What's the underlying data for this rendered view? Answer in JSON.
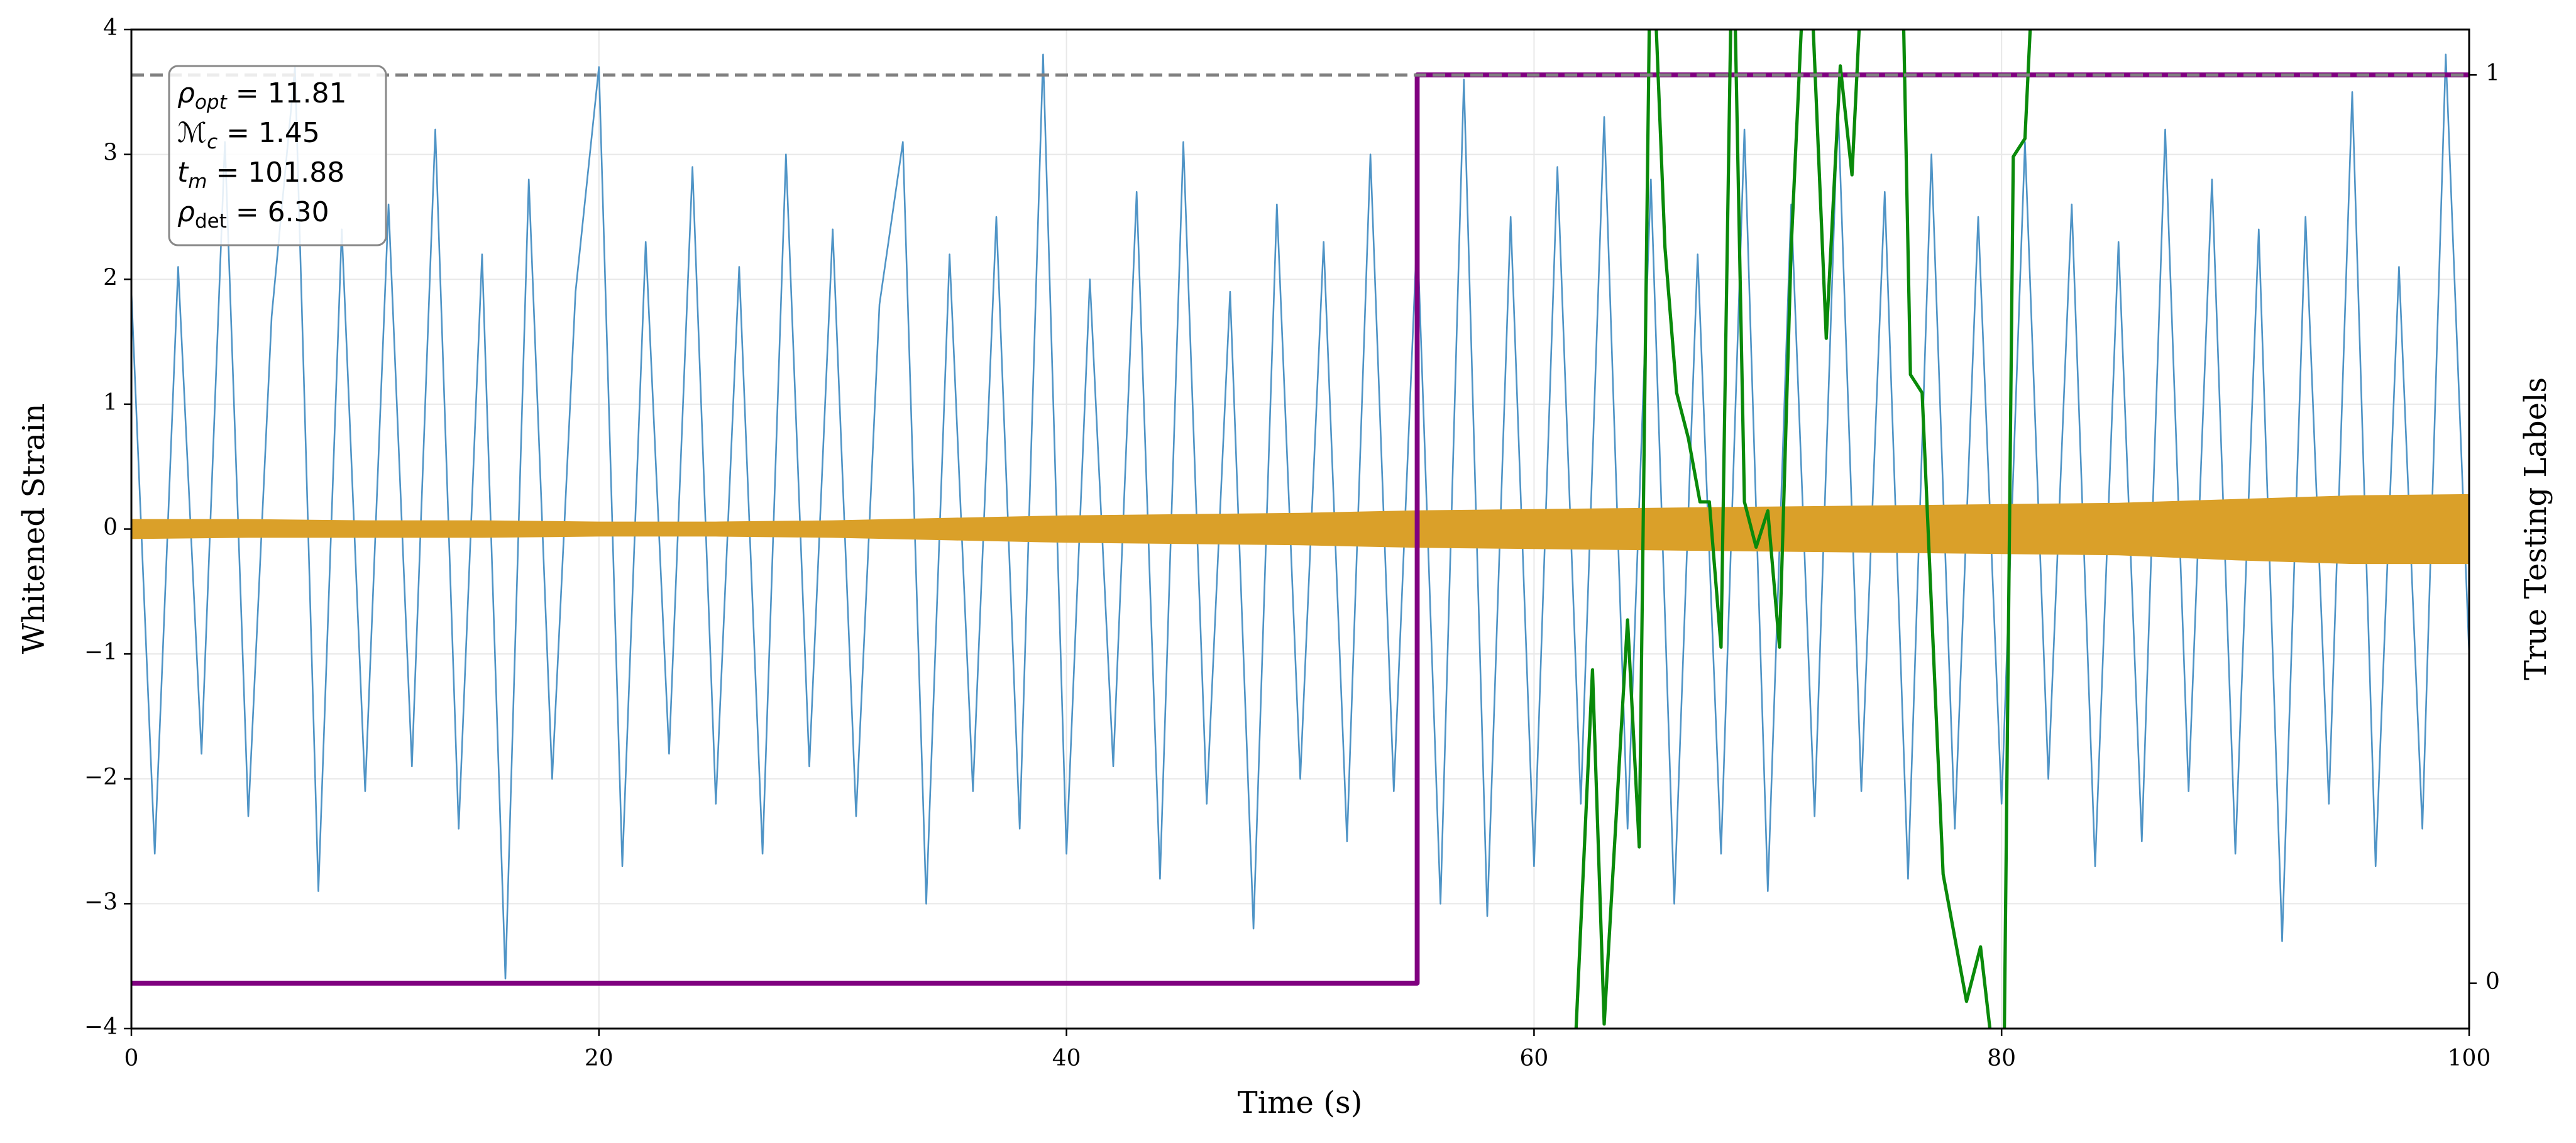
{
  "chart_data": {
    "type": "line",
    "xlabel": "Time (s)",
    "ylabel": "Whitened Strain",
    "y2label": "True Testing Labels",
    "xlim": [
      0,
      100
    ],
    "ylim": [
      -4,
      4
    ],
    "y2lim": [
      -0.05,
      1.05
    ],
    "xticks": [
      0,
      20,
      40,
      60,
      80,
      100
    ],
    "yticks": [
      {
        "value": -4,
        "label": "−4"
      },
      {
        "value": -3,
        "label": "−3"
      },
      {
        "value": -2,
        "label": "−2"
      },
      {
        "value": -1,
        "label": "−1"
      },
      0,
      1,
      2,
      3,
      4
    ],
    "y2ticks": [
      0,
      1
    ],
    "grid": true,
    "series": [
      {
        "type": "line",
        "color": "#4f94c6",
        "x": [
          0,
          1,
          2,
          3,
          4,
          5,
          6,
          7,
          8,
          9,
          10,
          11,
          12,
          13,
          14,
          15,
          16,
          17,
          18,
          19,
          20,
          21,
          22,
          23,
          24,
          25,
          26,
          27,
          28,
          29,
          30,
          31,
          32,
          33,
          34,
          35,
          36,
          37,
          38,
          39,
          40,
          41,
          42,
          43,
          44,
          45,
          46,
          47,
          48,
          49,
          50,
          51,
          52,
          53,
          54,
          55,
          56,
          57,
          58,
          59,
          60,
          61,
          62,
          63,
          64,
          65,
          66,
          67,
          68,
          69,
          70,
          71,
          72,
          73,
          74,
          75,
          76,
          77,
          78,
          79,
          80,
          81,
          82,
          83,
          84,
          85,
          86,
          87,
          88,
          89,
          90,
          91,
          92,
          93,
          94,
          95,
          96,
          97,
          98,
          99,
          100
        ],
        "values": [
          1.9,
          -2.6,
          2.1,
          -1.8,
          3.1,
          -2.3,
          1.7,
          3.7,
          -2.9,
          2.4,
          -2.1,
          2.6,
          -1.9,
          3.2,
          -2.4,
          2.2,
          -3.6,
          2.8,
          -2.0,
          1.9,
          3.7,
          -2.7,
          2.3,
          -1.8,
          2.9,
          -2.2,
          2.1,
          -2.6,
          3.0,
          -1.9,
          2.4,
          -2.3,
          1.8,
          3.1,
          -3.0,
          2.2,
          -2.1,
          2.5,
          -2.4,
          3.8,
          -2.6,
          2.0,
          -1.9,
          2.7,
          -2.8,
          3.1,
          -2.2,
          1.9,
          -3.2,
          2.6,
          -2.0,
          2.3,
          -2.5,
          3.0,
          -2.1,
          2.4,
          -3.0,
          3.6,
          -3.1,
          2.5,
          -2.7,
          2.9,
          -2.2,
          3.3,
          -2.4,
          2.8,
          -3.0,
          2.2,
          -2.6,
          3.2,
          -2.9,
          2.6,
          -2.3,
          3.4,
          -2.1,
          2.7,
          -2.8,
          3.0,
          -2.4,
          2.5,
          -2.2,
          3.1,
          -2.0,
          2.6,
          -2.7,
          2.3,
          -2.5,
          3.2,
          -2.1,
          2.8,
          -2.6,
          2.4,
          -3.3,
          2.5,
          -2.2,
          3.5,
          -2.7,
          2.1,
          -2.4,
          3.8,
          -1.0
        ]
      },
      {
        "type": "band",
        "color": "#daa029",
        "x": [
          0,
          5,
          10,
          15,
          20,
          25,
          30,
          35,
          40,
          45,
          50,
          55,
          60,
          65,
          70,
          75,
          80,
          85,
          90,
          95,
          100
        ],
        "upper": [
          0.08,
          0.08,
          0.07,
          0.07,
          0.06,
          0.06,
          0.07,
          0.09,
          0.11,
          0.12,
          0.13,
          0.15,
          0.16,
          0.17,
          0.18,
          0.19,
          0.2,
          0.21,
          0.24,
          0.27,
          0.28
        ],
        "lower": [
          -0.08,
          -0.07,
          -0.07,
          -0.07,
          -0.06,
          -0.06,
          -0.07,
          -0.09,
          -0.11,
          -0.12,
          -0.13,
          -0.15,
          -0.16,
          -0.17,
          -0.18,
          -0.19,
          -0.2,
          -0.21,
          -0.25,
          -0.28,
          -0.28
        ]
      },
      {
        "type": "line",
        "axis": "y2",
        "color": "#800080",
        "width": 3,
        "x": [
          0,
          55,
          55,
          100
        ],
        "values": [
          0,
          0,
          1,
          1
        ]
      },
      {
        "type": "line",
        "axis": "y2",
        "color": "#0a8a0a",
        "width": 2,
        "x": [
          61.8,
          62.5,
          63.0,
          64.0,
          64.5,
          65.0,
          65.6,
          66.1,
          66.6,
          67.1,
          67.5,
          68.0,
          68.5,
          69.0,
          69.5,
          70.0,
          70.5,
          71.0,
          71.7,
          72.5,
          73.1,
          73.6,
          74.0,
          75.7,
          76.1,
          76.6,
          77.5,
          78.5,
          79.1,
          79.5,
          80.1,
          80.5,
          81.0,
          81.5
        ],
        "values": [
          -0.05,
          0.345,
          -0.045,
          0.4,
          0.15,
          1.2,
          0.81,
          0.65,
          0.6,
          0.53,
          0.53,
          0.37,
          1.2,
          0.53,
          0.48,
          0.52,
          0.37,
          0.81,
          1.2,
          0.71,
          1.01,
          0.89,
          1.1,
          1.2,
          0.67,
          0.65,
          0.12,
          -0.02,
          0.04,
          -0.05,
          -0.1,
          0.91,
          0.93,
          1.2
        ]
      }
    ],
    "reference_line": {
      "axis": "y2",
      "value": 1,
      "color": "#808080",
      "dashed": true
    },
    "annotations": [
      {
        "symbol": "ρ",
        "subscript": "opt",
        "text": " = 11.81"
      },
      {
        "symbol": "ℳ",
        "subscript": "c",
        "text": " = 1.45"
      },
      {
        "symbol": "t",
        "subscript": "m",
        "text": " = 101.88"
      },
      {
        "symbol": "ρ",
        "subscript": "det",
        "text": " = 6.30"
      }
    ]
  }
}
